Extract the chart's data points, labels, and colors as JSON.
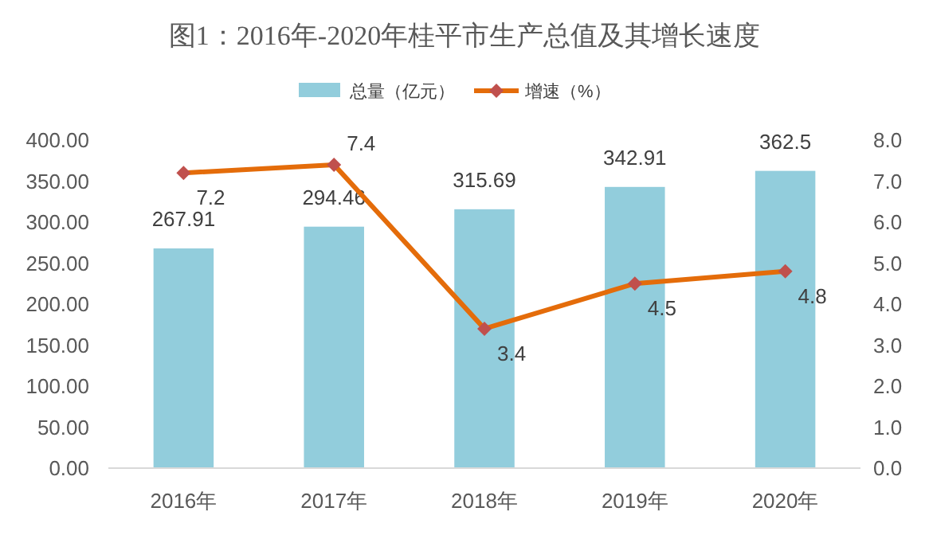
{
  "chart_data": {
    "type": "bar",
    "title": "图1：2016年-2020年桂平市生产总值及其增长速度",
    "categories": [
      "2016年",
      "2017年",
      "2018年",
      "2019年",
      "2020年"
    ],
    "series": [
      {
        "name": "总量（亿元）",
        "color": "#92cddc",
        "values": [
          267.91,
          294.46,
          315.69,
          342.91,
          362.5
        ]
      },
      {
        "name": "增速（%）",
        "type": "line",
        "axis": "y2",
        "color": "#e46c0a",
        "marker": "diamond",
        "values": [
          7.2,
          7.4,
          3.4,
          4.5,
          4.8
        ]
      }
    ],
    "ylim": [
      0,
      400
    ],
    "yticks": [
      {
        "value": 0,
        "label": "0.00"
      },
      {
        "value": 50,
        "label": "50.00"
      },
      {
        "value": 100,
        "label": "100.00"
      },
      {
        "value": 150,
        "label": "150.00"
      },
      {
        "value": 200,
        "label": "200.00"
      },
      {
        "value": 250,
        "label": "250.00"
      },
      {
        "value": 300,
        "label": "300.00"
      },
      {
        "value": 350,
        "label": "350.00"
      },
      {
        "value": 400,
        "label": "400.00"
      }
    ],
    "y2lim": [
      0,
      8
    ],
    "y2ticks": [
      {
        "value": 0,
        "label": "0.0"
      },
      {
        "value": 1,
        "label": "1.0"
      },
      {
        "value": 2,
        "label": "2.0"
      },
      {
        "value": 3,
        "label": "3.0"
      },
      {
        "value": 4,
        "label": "4.0"
      },
      {
        "value": 5,
        "label": "5.0"
      },
      {
        "value": 6,
        "label": "6.0"
      },
      {
        "value": 7,
        "label": "7.0"
      },
      {
        "value": 8,
        "label": "8.0"
      }
    ],
    "grid": false,
    "legend": "top",
    "data_labels": true
  }
}
